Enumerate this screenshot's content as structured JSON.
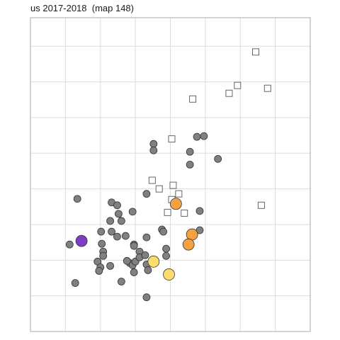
{
  "chart_data": {
    "type": "scatter",
    "title": "us 2017-2018  (map 148)",
    "xlabel": "",
    "ylabel": "",
    "xlim": [
      0,
      400
    ],
    "ylim": [
      0,
      440
    ],
    "grid": true,
    "tick_labels_shown": false,
    "colors": {
      "grey_point": "#808080",
      "open_square_stroke": "#555555",
      "orange_point": "#F5A142",
      "yellow_point": "#FDDC6E",
      "purple_point": "#7B3FC4",
      "grid": "#DDDDDD",
      "border": "#AAAAAA"
    },
    "series": [
      {
        "marker": "circle-filled",
        "color": "#808080",
        "points": [
          [
            67,
            186
          ],
          [
            176,
            263
          ],
          [
            176,
            254
          ],
          [
            238,
            273
          ],
          [
            248,
            274
          ],
          [
            228,
            252
          ],
          [
            268,
            242
          ],
          [
            228,
            234
          ],
          [
            166,
            193
          ],
          [
            116,
            181
          ],
          [
            124,
            177
          ],
          [
            126,
            165
          ],
          [
            146,
            168
          ],
          [
            114,
            155
          ],
          [
            130,
            155
          ],
          [
            188,
            143
          ],
          [
            242,
            169
          ],
          [
            242,
            142
          ],
          [
            56,
            122
          ],
          [
            101,
            140
          ],
          [
            116,
            140
          ],
          [
            124,
            133
          ],
          [
            136,
            134
          ],
          [
            166,
            132
          ],
          [
            148,
            122
          ],
          [
            148,
            120
          ],
          [
            190,
            140
          ],
          [
            102,
            123
          ],
          [
            104,
            112
          ],
          [
            104,
            106
          ],
          [
            96,
            98
          ],
          [
            100,
            90
          ],
          [
            142,
            96
          ],
          [
            146,
            93
          ],
          [
            150,
            98
          ],
          [
            156,
            112
          ],
          [
            156,
            104
          ],
          [
            164,
            107
          ],
          [
            166,
            94
          ],
          [
            168,
            86
          ],
          [
            194,
            116
          ],
          [
            194,
            106
          ],
          [
            138,
            99
          ],
          [
            114,
            92
          ],
          [
            148,
            83
          ],
          [
            98,
            85
          ],
          [
            130,
            70
          ],
          [
            64,
            68
          ],
          [
            166,
            48
          ]
        ]
      },
      {
        "marker": "square-open",
        "color": "#555555",
        "points": [
          [
            322,
            392
          ],
          [
            296,
            345
          ],
          [
            339,
            341
          ],
          [
            284,
            334
          ],
          [
            232,
            326
          ],
          [
            202,
            270
          ],
          [
            174,
            212
          ],
          [
            184,
            200
          ],
          [
            204,
            205
          ],
          [
            212,
            193
          ],
          [
            202,
            185
          ],
          [
            220,
            166
          ],
          [
            196,
            167
          ],
          [
            330,
            177
          ]
        ]
      },
      {
        "marker": "circle-filled",
        "color": "#F5A142",
        "points": [
          [
            208,
            179
          ],
          [
            231,
            136
          ],
          [
            226,
            122
          ]
        ]
      },
      {
        "marker": "circle-filled",
        "color": "#FDDC6E",
        "points": [
          [
            176,
            98
          ],
          [
            198,
            80
          ]
        ]
      },
      {
        "marker": "circle-filled",
        "color": "#7B3FC4",
        "points": [
          [
            73,
            127
          ]
        ]
      }
    ]
  }
}
